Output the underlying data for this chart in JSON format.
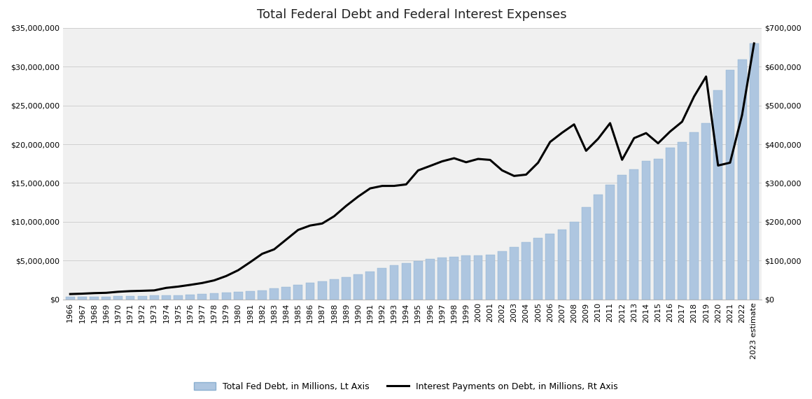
{
  "title": "Total Federal Debt and Federal Interest Expenses",
  "years": [
    "1966",
    "1967",
    "1968",
    "1969",
    "1970",
    "1971",
    "1972",
    "1973",
    "1974",
    "1975",
    "1976",
    "1977",
    "1978",
    "1979",
    "1980",
    "1981",
    "1982",
    "1983",
    "1984",
    "1985",
    "1986",
    "1987",
    "1988",
    "1989",
    "1990",
    "1991",
    "1992",
    "1993",
    "1994",
    "1995",
    "1996",
    "1997",
    "1998",
    "1999",
    "2000",
    "2001",
    "2002",
    "2003",
    "2004",
    "2005",
    "2006",
    "2007",
    "2008",
    "2009",
    "2010",
    "2011",
    "2012",
    "2013",
    "2014",
    "2015",
    "2016",
    "2017",
    "2018",
    "2019",
    "2020",
    "2021",
    "2022",
    "2023 estimate"
  ],
  "total_debt": [
    319907,
    326331,
    347578,
    353720,
    370918,
    398129,
    427260,
    458141,
    475059,
    533189,
    620433,
    698840,
    771544,
    826519,
    907701,
    994845,
    1137300,
    1371700,
    1564600,
    1817500,
    2120600,
    2346100,
    2601300,
    2867800,
    3206600,
    3598200,
    4001800,
    4351200,
    4643700,
    4920600,
    5181900,
    5369700,
    5478200,
    5606100,
    5628700,
    5769900,
    6198400,
    6760000,
    7354700,
    7905300,
    8451400,
    8950700,
    9986100,
    11875100,
    13528800,
    14764200,
    16050900,
    16719400,
    17794000,
    18120100,
    19539500,
    20244900,
    21516100,
    22719400,
    26945100,
    29617300,
    30928700,
    33000000
  ],
  "interest_payments": [
    13400,
    14400,
    15800,
    16600,
    19300,
    20957,
    21816,
    22836,
    29319,
    32665,
    37088,
    41894,
    48702,
    59885,
    74860,
    95574,
    117219,
    128764,
    153820,
    178912,
    190191,
    195358,
    214148,
    240863,
    264852,
    286021,
    292360,
    292502,
    296262,
    332440,
    343955,
    355796,
    363823,
    353511,
    361997,
    359507,
    332536,
    318148,
    321566,
    352350,
    405872,
    429654,
    451154,
    383071,
    413954,
    454393,
    359796,
    415688,
    428655,
    402435,
    432649,
    457993,
    523021,
    574613,
    345063,
    352340,
    475253,
    660000
  ],
  "bar_color": "#aec6e0",
  "bar_edgecolor": "#8aafd0",
  "line_color": "#000000",
  "background_color": "#ffffff",
  "plot_bg_color": "#f0f0f0",
  "left_ylim": [
    0,
    35000000
  ],
  "right_ylim": [
    0,
    700000
  ],
  "left_yticks": [
    0,
    5000000,
    10000000,
    15000000,
    20000000,
    25000000,
    30000000,
    35000000
  ],
  "right_yticks": [
    0,
    100000,
    200000,
    300000,
    400000,
    500000,
    600000,
    700000
  ],
  "legend_bar_label": "Total Fed Debt, in Millions, Lt Axis",
  "legend_line_label": "Interest Payments on Debt, in Millions, Rt Axis",
  "title_fontsize": 13,
  "tick_fontsize": 8,
  "legend_fontsize": 9
}
